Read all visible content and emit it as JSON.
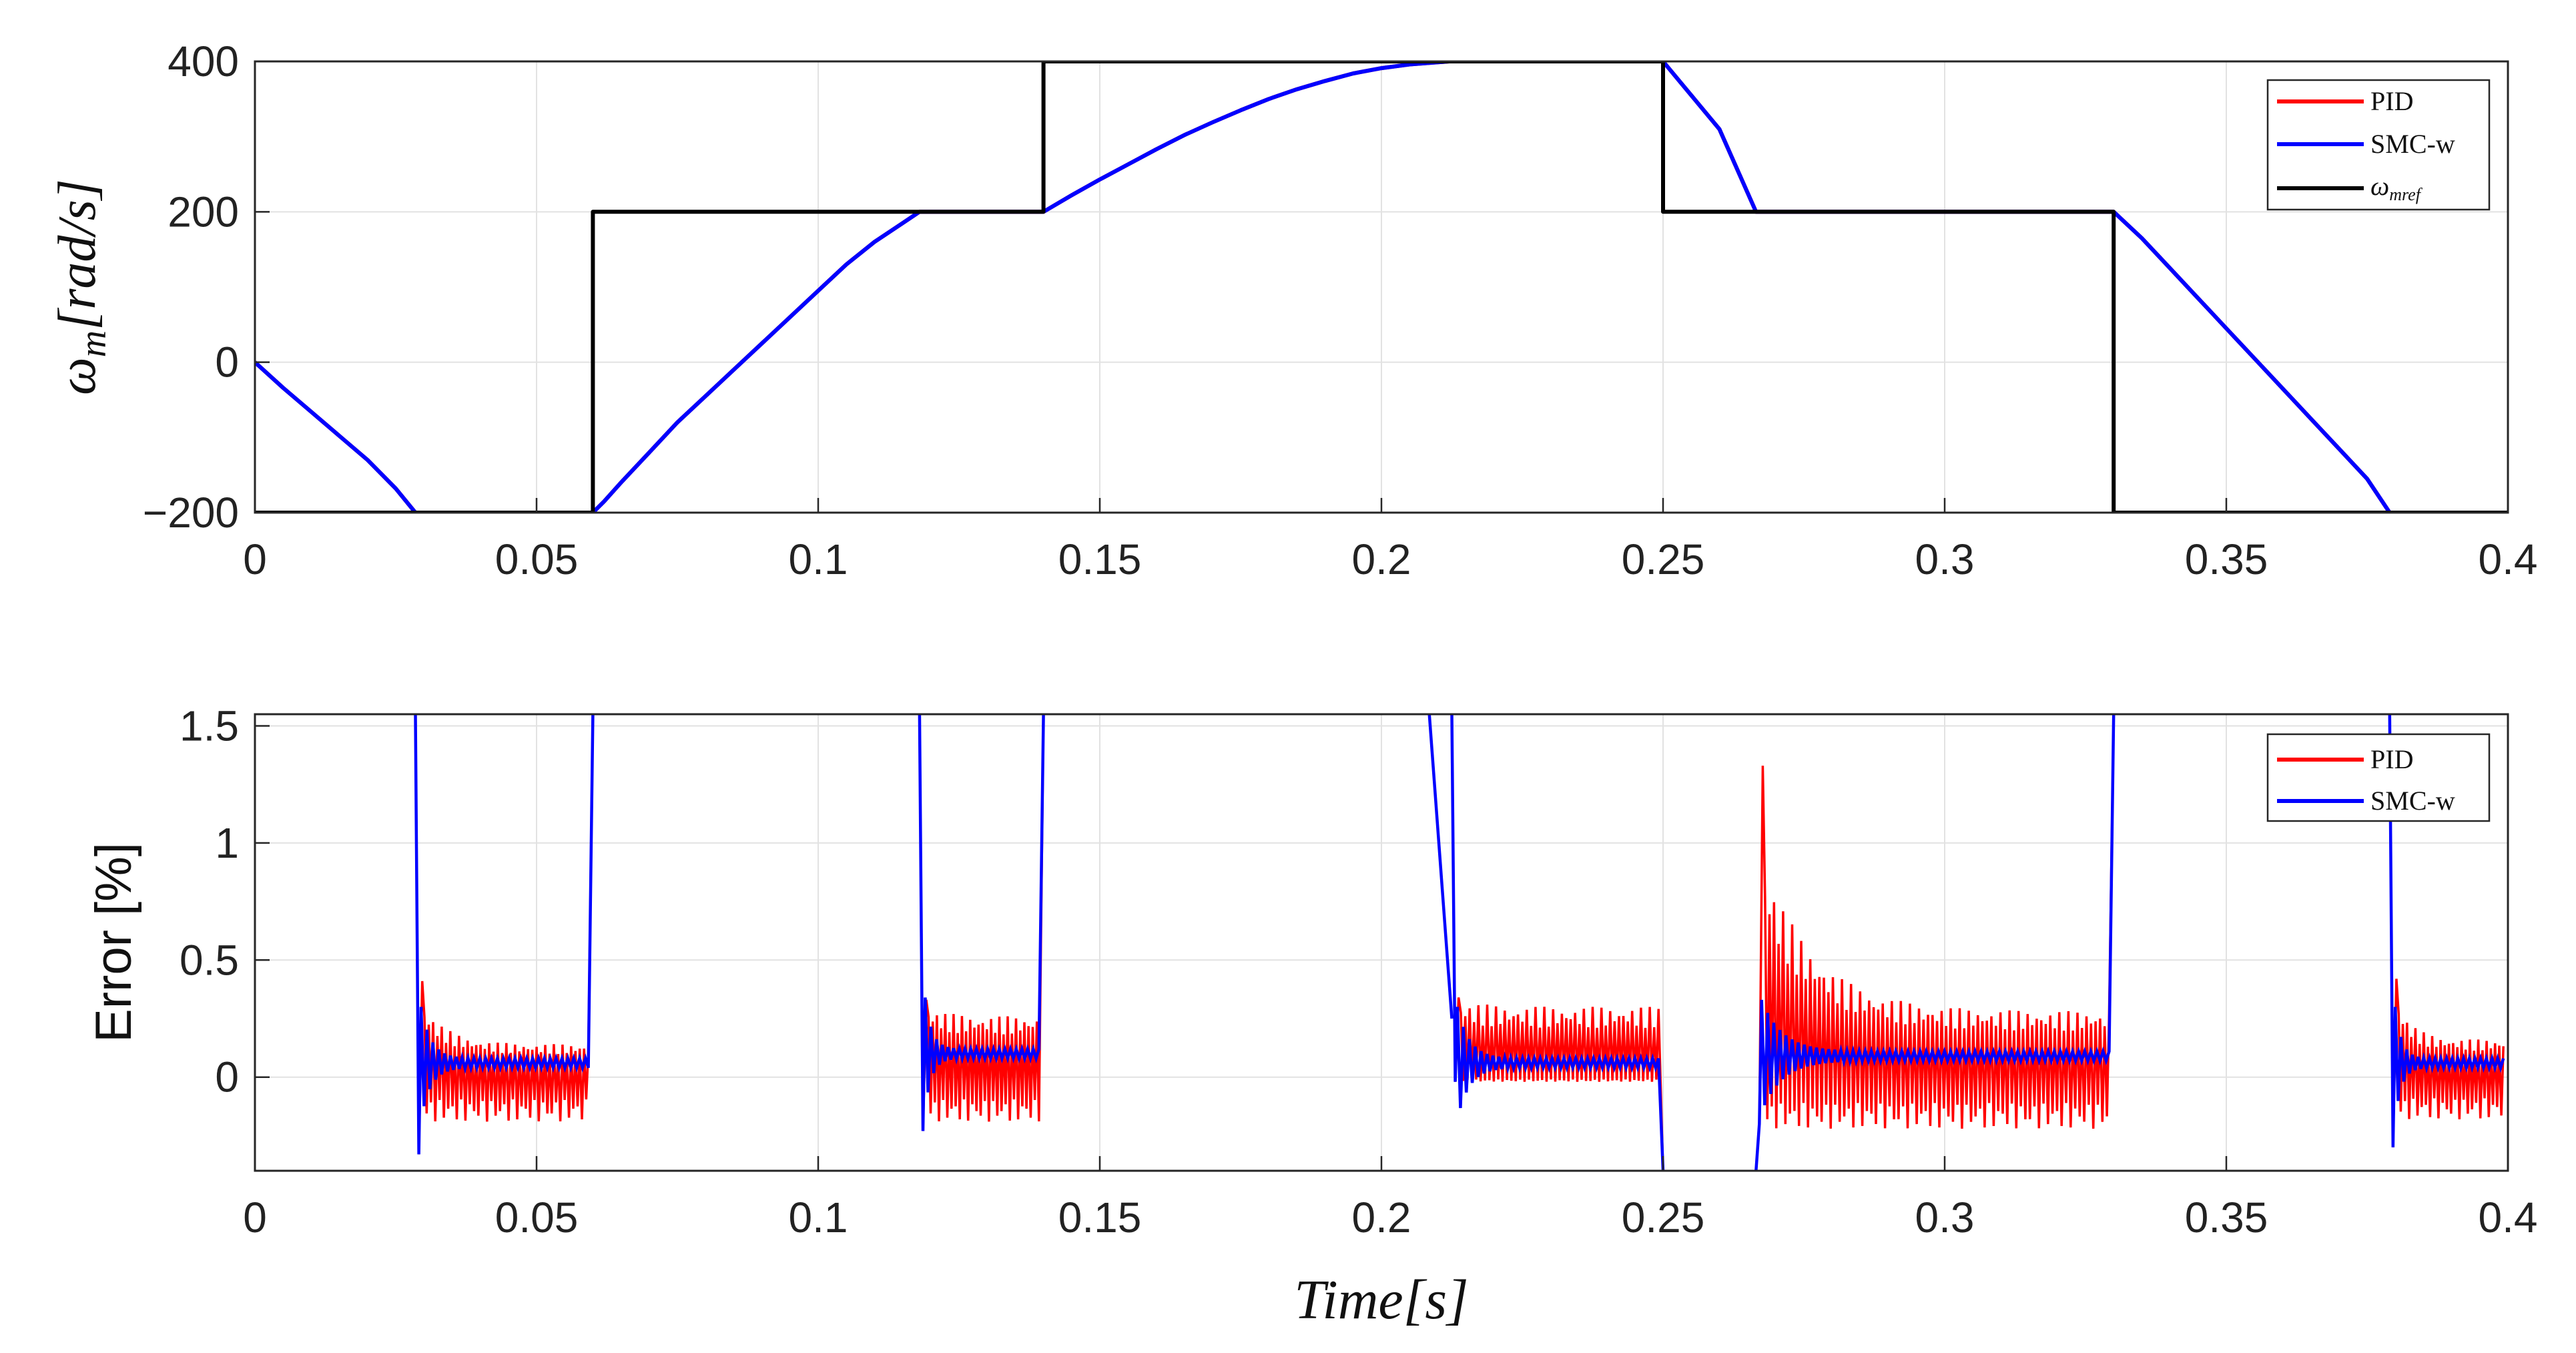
{
  "chart_data": [
    {
      "type": "line",
      "title": "",
      "xlabel": "",
      "ylabel": "ω_m[rad/s]",
      "ylabel_base": "ω",
      "ylabel_sub": "m",
      "ylabel_rest": "[rad/s]",
      "xlim": [
        0,
        0.4
      ],
      "ylim": [
        -200,
        400
      ],
      "xticks": [
        0,
        0.05,
        0.1,
        0.15,
        0.2,
        0.25,
        0.3,
        0.35,
        0.4
      ],
      "xtick_labels": [
        "0",
        "0.05",
        "0.1",
        "0.15",
        "0.2",
        "0.25",
        "0.3",
        "0.35",
        "0.4"
      ],
      "yticks": [
        -200,
        0,
        200,
        400
      ],
      "ytick_labels": [
        "−200",
        "0",
        "200",
        "400"
      ],
      "grid": true,
      "legend_position": "top-right",
      "legend": [
        {
          "name": "PID",
          "color": "#ff0000"
        },
        {
          "name": "SMC-w",
          "color": "#0000ff"
        },
        {
          "name": "ω_mref",
          "base": "ω",
          "sub": "mref",
          "color": "#000000"
        }
      ],
      "series": [
        {
          "name": "ω_mref",
          "color": "#000000",
          "x": [
            0,
            0.06,
            0.06,
            0.14,
            0.14,
            0.25,
            0.25,
            0.33,
            0.33,
            0.4
          ],
          "y": [
            -200,
            -200,
            200,
            200,
            400,
            400,
            200,
            200,
            -200,
            -200
          ]
        },
        {
          "name": "SMC-w",
          "color": "#0000ff",
          "x": [
            0,
            0.005,
            0.01,
            0.015,
            0.02,
            0.025,
            0.0285,
            0.06,
            0.062,
            0.065,
            0.07,
            0.075,
            0.08,
            0.085,
            0.09,
            0.095,
            0.1,
            0.105,
            0.11,
            0.115,
            0.118,
            0.14,
            0.145,
            0.15,
            0.155,
            0.16,
            0.165,
            0.17,
            0.175,
            0.18,
            0.185,
            0.19,
            0.195,
            0.2,
            0.205,
            0.212,
            0.25,
            0.255,
            0.26,
            0.2665,
            0.33,
            0.335,
            0.34,
            0.345,
            0.35,
            0.355,
            0.36,
            0.365,
            0.37,
            0.375,
            0.379,
            0.4
          ],
          "y": [
            0,
            -34,
            -66,
            -98,
            -130,
            -168,
            -200,
            -200,
            -185,
            -160,
            -120,
            -80,
            -45,
            -10,
            25,
            60,
            95,
            130,
            160,
            185,
            200,
            200,
            222,
            243,
            263,
            283,
            302,
            319,
            335,
            350,
            363,
            374,
            384,
            391,
            396,
            400,
            400,
            355,
            310,
            200,
            200,
            165,
            125,
            85,
            45,
            5,
            -35,
            -75,
            -115,
            -155,
            -200,
            -200
          ]
        },
        {
          "name": "PID",
          "color": "#ff0000",
          "x": [
            0,
            0.005,
            0.01,
            0.015,
            0.02,
            0.025,
            0.0285,
            0.06,
            0.062,
            0.065,
            0.07,
            0.075,
            0.08,
            0.085,
            0.09,
            0.095,
            0.1,
            0.105,
            0.11,
            0.115,
            0.118,
            0.14,
            0.145,
            0.15,
            0.155,
            0.16,
            0.165,
            0.17,
            0.175,
            0.18,
            0.185,
            0.19,
            0.195,
            0.2,
            0.205,
            0.212,
            0.25,
            0.255,
            0.26,
            0.2665,
            0.33,
            0.335,
            0.34,
            0.345,
            0.35,
            0.355,
            0.36,
            0.365,
            0.37,
            0.375,
            0.379,
            0.4
          ],
          "y": [
            0,
            -34,
            -66,
            -98,
            -130,
            -168,
            -200,
            -200,
            -185,
            -160,
            -120,
            -80,
            -45,
            -10,
            25,
            60,
            95,
            130,
            160,
            185,
            200,
            200,
            222,
            243,
            263,
            283,
            302,
            319,
            335,
            350,
            363,
            374,
            384,
            391,
            396,
            400,
            400,
            355,
            310,
            200,
            200,
            165,
            125,
            85,
            45,
            5,
            -35,
            -75,
            -115,
            -155,
            -200,
            -200
          ]
        }
      ]
    },
    {
      "type": "line",
      "title": "",
      "xlabel": "Time[s]",
      "ylabel": "Error [%]",
      "xlim": [
        0,
        0.4
      ],
      "ylim": [
        -0.4,
        1.55
      ],
      "xticks": [
        0,
        0.05,
        0.1,
        0.15,
        0.2,
        0.25,
        0.3,
        0.35,
        0.4
      ],
      "xtick_labels": [
        "0",
        "0.05",
        "0.1",
        "0.15",
        "0.2",
        "0.25",
        "0.3",
        "0.35",
        "0.4"
      ],
      "yticks": [
        0,
        0.5,
        1,
        1.5
      ],
      "ytick_labels": [
        "0",
        "0.5",
        "1",
        "1.5"
      ],
      "grid": true,
      "legend_position": "top-right",
      "legend": [
        {
          "name": "PID",
          "color": "#ff0000"
        },
        {
          "name": "SMC-w",
          "color": "#0000ff"
        }
      ],
      "segments": [
        {
          "start": 0.0285,
          "end": 0.06,
          "spike": -0.33,
          "pid_peak": 0.41,
          "pid_high": 0.14,
          "pid_low": -0.19,
          "smc_level": 0.06,
          "left_rise": 1.55,
          "right_rise": 1.55
        },
        {
          "start": 0.118,
          "end": 0.14,
          "spike": -0.23,
          "pid_peak": 0.33,
          "pid_high": 0.26,
          "pid_low": -0.19,
          "smc_level": 0.1,
          "left_rise": 1.55,
          "right_rise": 1.55
        },
        {
          "start": 0.2125,
          "end": 0.25,
          "spike": -0.02,
          "pid_peak": 0.34,
          "pid_high": 0.3,
          "pid_low": -0.02,
          "smc_level": 0.06,
          "left_rise": 1.55,
          "right_rise": -0.4
        },
        {
          "start": 0.2665,
          "end": 0.33,
          "spike": -0.2,
          "pid_peak": 1.33,
          "pid_high": 0.28,
          "pid_low": -0.22,
          "smc_level": 0.09,
          "left_rise": -0.4,
          "right_rise": 1.55
        },
        {
          "start": 0.379,
          "end": 0.4,
          "spike": -0.3,
          "pid_peak": 0.42,
          "pid_high": 0.16,
          "pid_low": -0.18,
          "smc_level": 0.06,
          "left_rise": 1.55,
          "right_rise": null
        }
      ]
    }
  ]
}
